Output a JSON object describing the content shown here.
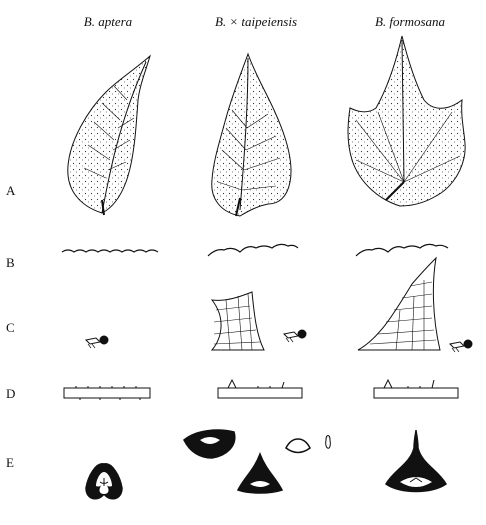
{
  "columns": [
    {
      "id": "aptera",
      "label": "B. aptera"
    },
    {
      "id": "hybrid",
      "label": "B. × taipeiensis"
    },
    {
      "id": "formosana",
      "label": "B. formosana"
    }
  ],
  "rows": [
    "A",
    "B",
    "C",
    "D",
    "E"
  ],
  "row_meanings": {
    "A": "leaf outline",
    "B": "leaf margin",
    "C": "trichomes",
    "D": "cross-section edge",
    "E": "fruit cross-section"
  }
}
